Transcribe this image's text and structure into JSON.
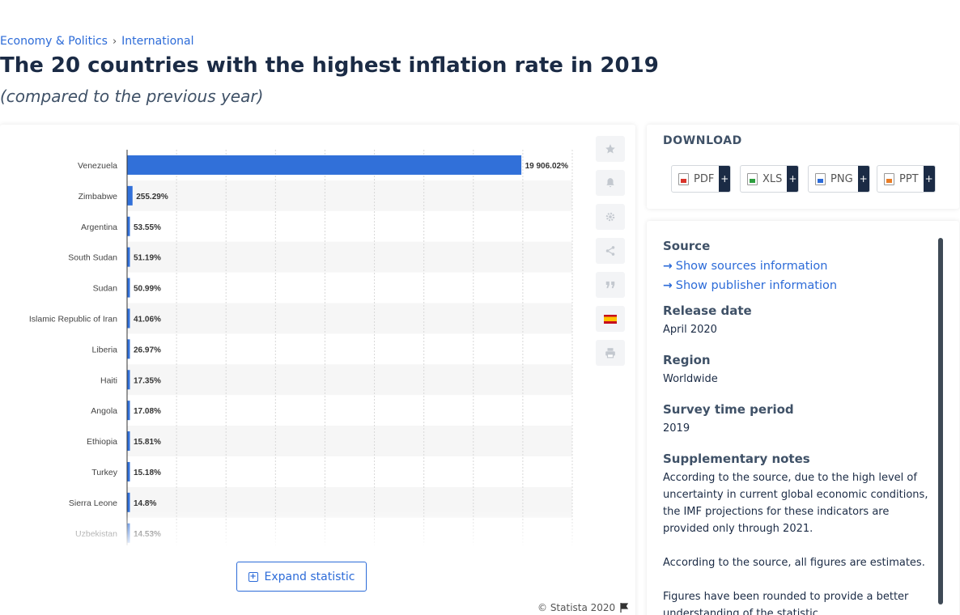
{
  "breadcrumb": {
    "items": [
      "Economy & Politics",
      "International"
    ],
    "separator": "›"
  },
  "page": {
    "title": "The 20 countries with the highest inflation rate in 2019",
    "subtitle": "(compared to the previous year)"
  },
  "chart_data": {
    "type": "bar",
    "orientation": "horizontal",
    "categories": [
      "Venezuela",
      "Zimbabwe",
      "Argentina",
      "South Sudan",
      "Sudan",
      "Islamic Republic of Iran",
      "Liberia",
      "Haiti",
      "Angola",
      "Ethiopia",
      "Turkey",
      "Sierra Leone",
      "Uzbekistan"
    ],
    "values": [
      19906.02,
      255.29,
      53.55,
      51.19,
      50.99,
      41.06,
      26.97,
      17.35,
      17.08,
      15.81,
      15.18,
      14.8,
      14.53
    ],
    "labels": [
      "19 906.02%",
      "255.29%",
      "53.55%",
      "51.19%",
      "50.99%",
      "41.06%",
      "26.97%",
      "17.35%",
      "17.08%",
      "15.81%",
      "15.18%",
      "14.8%",
      "14.53%"
    ],
    "xlim": [
      0,
      22500
    ],
    "gridlines": 9,
    "bar_color": "#3170d9",
    "grid": true
  },
  "toolbar": {
    "icons": [
      "star-icon",
      "bell-icon",
      "gear-icon",
      "share-icon",
      "quote-icon",
      "spanish-flag-icon",
      "print-icon"
    ],
    "expand_label": "Expand statistic",
    "copyright": "© Statista 2020"
  },
  "download": {
    "title": "DOWNLOAD",
    "buttons": [
      {
        "label": "PDF",
        "color": "#d9342b"
      },
      {
        "label": "XLS",
        "color": "#2e9e3f"
      },
      {
        "label": "PNG",
        "color": "#2c6bd8"
      },
      {
        "label": "PPT",
        "color": "#e97d26"
      }
    ]
  },
  "meta": {
    "source_heading": "Source",
    "show_sources": "Show sources information",
    "show_publisher": "Show publisher information",
    "release_heading": "Release date",
    "release_value": "April 2020",
    "region_heading": "Region",
    "region_value": "Worldwide",
    "survey_heading": "Survey time period",
    "survey_value": "2019",
    "notes_heading": "Supplementary notes",
    "notes": [
      "According to the source, due to the high level of uncertainty in current global economic conditions, the IMF projections for these indicators are provided only through 2021.",
      "According to the source, all figures are estimates.",
      "Figures have been rounded to provide a better understanding of the statistic."
    ]
  }
}
